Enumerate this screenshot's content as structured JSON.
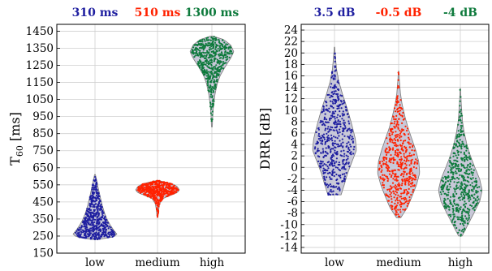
{
  "chart_data": [
    {
      "type": "violin",
      "ylabel": "T",
      "ylabel_sub": "60",
      "ylabel_unit": " [ms]",
      "ylim": [
        150,
        1490
      ],
      "yticks": [
        150,
        250,
        350,
        450,
        550,
        650,
        750,
        850,
        950,
        1050,
        1150,
        1250,
        1350,
        1450
      ],
      "grid": true,
      "categories": [
        "low",
        "medium",
        "high"
      ],
      "colors": [
        "#1f1fa0",
        "#ff2200",
        "#0e7a3c"
      ],
      "headers": [
        "310 ms",
        "510 ms",
        "1300 ms"
      ],
      "series": [
        {
          "min": 230,
          "max": 610,
          "median": 310,
          "profile": [
            [
              230,
              0.15
            ],
            [
              245,
              0.85
            ],
            [
              262,
              1.0
            ],
            [
              285,
              0.85
            ],
            [
              310,
              0.72
            ],
            [
              340,
              0.58
            ],
            [
              380,
              0.45
            ],
            [
              430,
              0.33
            ],
            [
              480,
              0.24
            ],
            [
              530,
              0.15
            ],
            [
              570,
              0.09
            ],
            [
              610,
              0.02
            ]
          ]
        },
        {
          "min": 360,
          "max": 575,
          "median": 510,
          "profile": [
            [
              360,
              0.02
            ],
            [
              400,
              0.05
            ],
            [
              440,
              0.1
            ],
            [
              470,
              0.25
            ],
            [
              490,
              0.62
            ],
            [
              505,
              0.9
            ],
            [
              520,
              1.0
            ],
            [
              540,
              0.9
            ],
            [
              555,
              0.7
            ],
            [
              565,
              0.4
            ],
            [
              575,
              0.05
            ]
          ]
        },
        {
          "min": 890,
          "max": 1420,
          "median": 1300,
          "profile": [
            [
              890,
              0.02
            ],
            [
              960,
              0.04
            ],
            [
              1020,
              0.08
            ],
            [
              1080,
              0.14
            ],
            [
              1140,
              0.24
            ],
            [
              1190,
              0.38
            ],
            [
              1240,
              0.6
            ],
            [
              1290,
              0.85
            ],
            [
              1330,
              1.0
            ],
            [
              1370,
              0.85
            ],
            [
              1400,
              0.55
            ],
            [
              1420,
              0.08
            ]
          ]
        }
      ]
    },
    {
      "type": "violin",
      "ylabel": "DRR [dB]",
      "ylim": [
        -15,
        25
      ],
      "yticks": [
        -14,
        -12,
        -10,
        -8,
        -6,
        -4,
        -2,
        0,
        2,
        4,
        6,
        8,
        10,
        12,
        14,
        16,
        18,
        20,
        22,
        24
      ],
      "grid": true,
      "categories": [
        "low",
        "medium",
        "high"
      ],
      "colors": [
        "#1f1fa0",
        "#ff2200",
        "#0e7a3c"
      ],
      "headers": [
        "3.5 dB",
        "-0.5 dB",
        "-4 dB"
      ],
      "series": [
        {
          "min": -4.8,
          "max": 21,
          "median": 3.5,
          "profile": [
            [
              -4.8,
              0.3
            ],
            [
              -3,
              0.45
            ],
            [
              -1,
              0.6
            ],
            [
              1,
              0.8
            ],
            [
              3,
              1.0
            ],
            [
              5,
              0.95
            ],
            [
              7,
              0.82
            ],
            [
              9,
              0.68
            ],
            [
              11,
              0.52
            ],
            [
              13,
              0.35
            ],
            [
              15,
              0.2
            ],
            [
              17,
              0.1
            ],
            [
              19,
              0.05
            ],
            [
              21,
              0.01
            ]
          ]
        },
        {
          "min": -8.8,
          "max": 16.8,
          "median": -0.5,
          "profile": [
            [
              -8.8,
              0.1
            ],
            [
              -7,
              0.4
            ],
            [
              -5,
              0.62
            ],
            [
              -3,
              0.82
            ],
            [
              -1,
              0.96
            ],
            [
              1,
              0.92
            ],
            [
              3,
              0.78
            ],
            [
              5,
              0.6
            ],
            [
              7,
              0.42
            ],
            [
              9,
              0.28
            ],
            [
              11,
              0.16
            ],
            [
              13,
              0.08
            ],
            [
              15,
              0.04
            ],
            [
              16.8,
              0.01
            ]
          ]
        },
        {
          "min": -12,
          "max": 13.8,
          "median": -4,
          "profile": [
            [
              -12,
              0.08
            ],
            [
              -10,
              0.35
            ],
            [
              -8,
              0.62
            ],
            [
              -6,
              0.88
            ],
            [
              -4,
              1.0
            ],
            [
              -2,
              0.88
            ],
            [
              0,
              0.66
            ],
            [
              2,
              0.46
            ],
            [
              4,
              0.3
            ],
            [
              6,
              0.18
            ],
            [
              8,
              0.1
            ],
            [
              10,
              0.06
            ],
            [
              12,
              0.03
            ],
            [
              13.8,
              0.01
            ]
          ]
        }
      ]
    }
  ]
}
